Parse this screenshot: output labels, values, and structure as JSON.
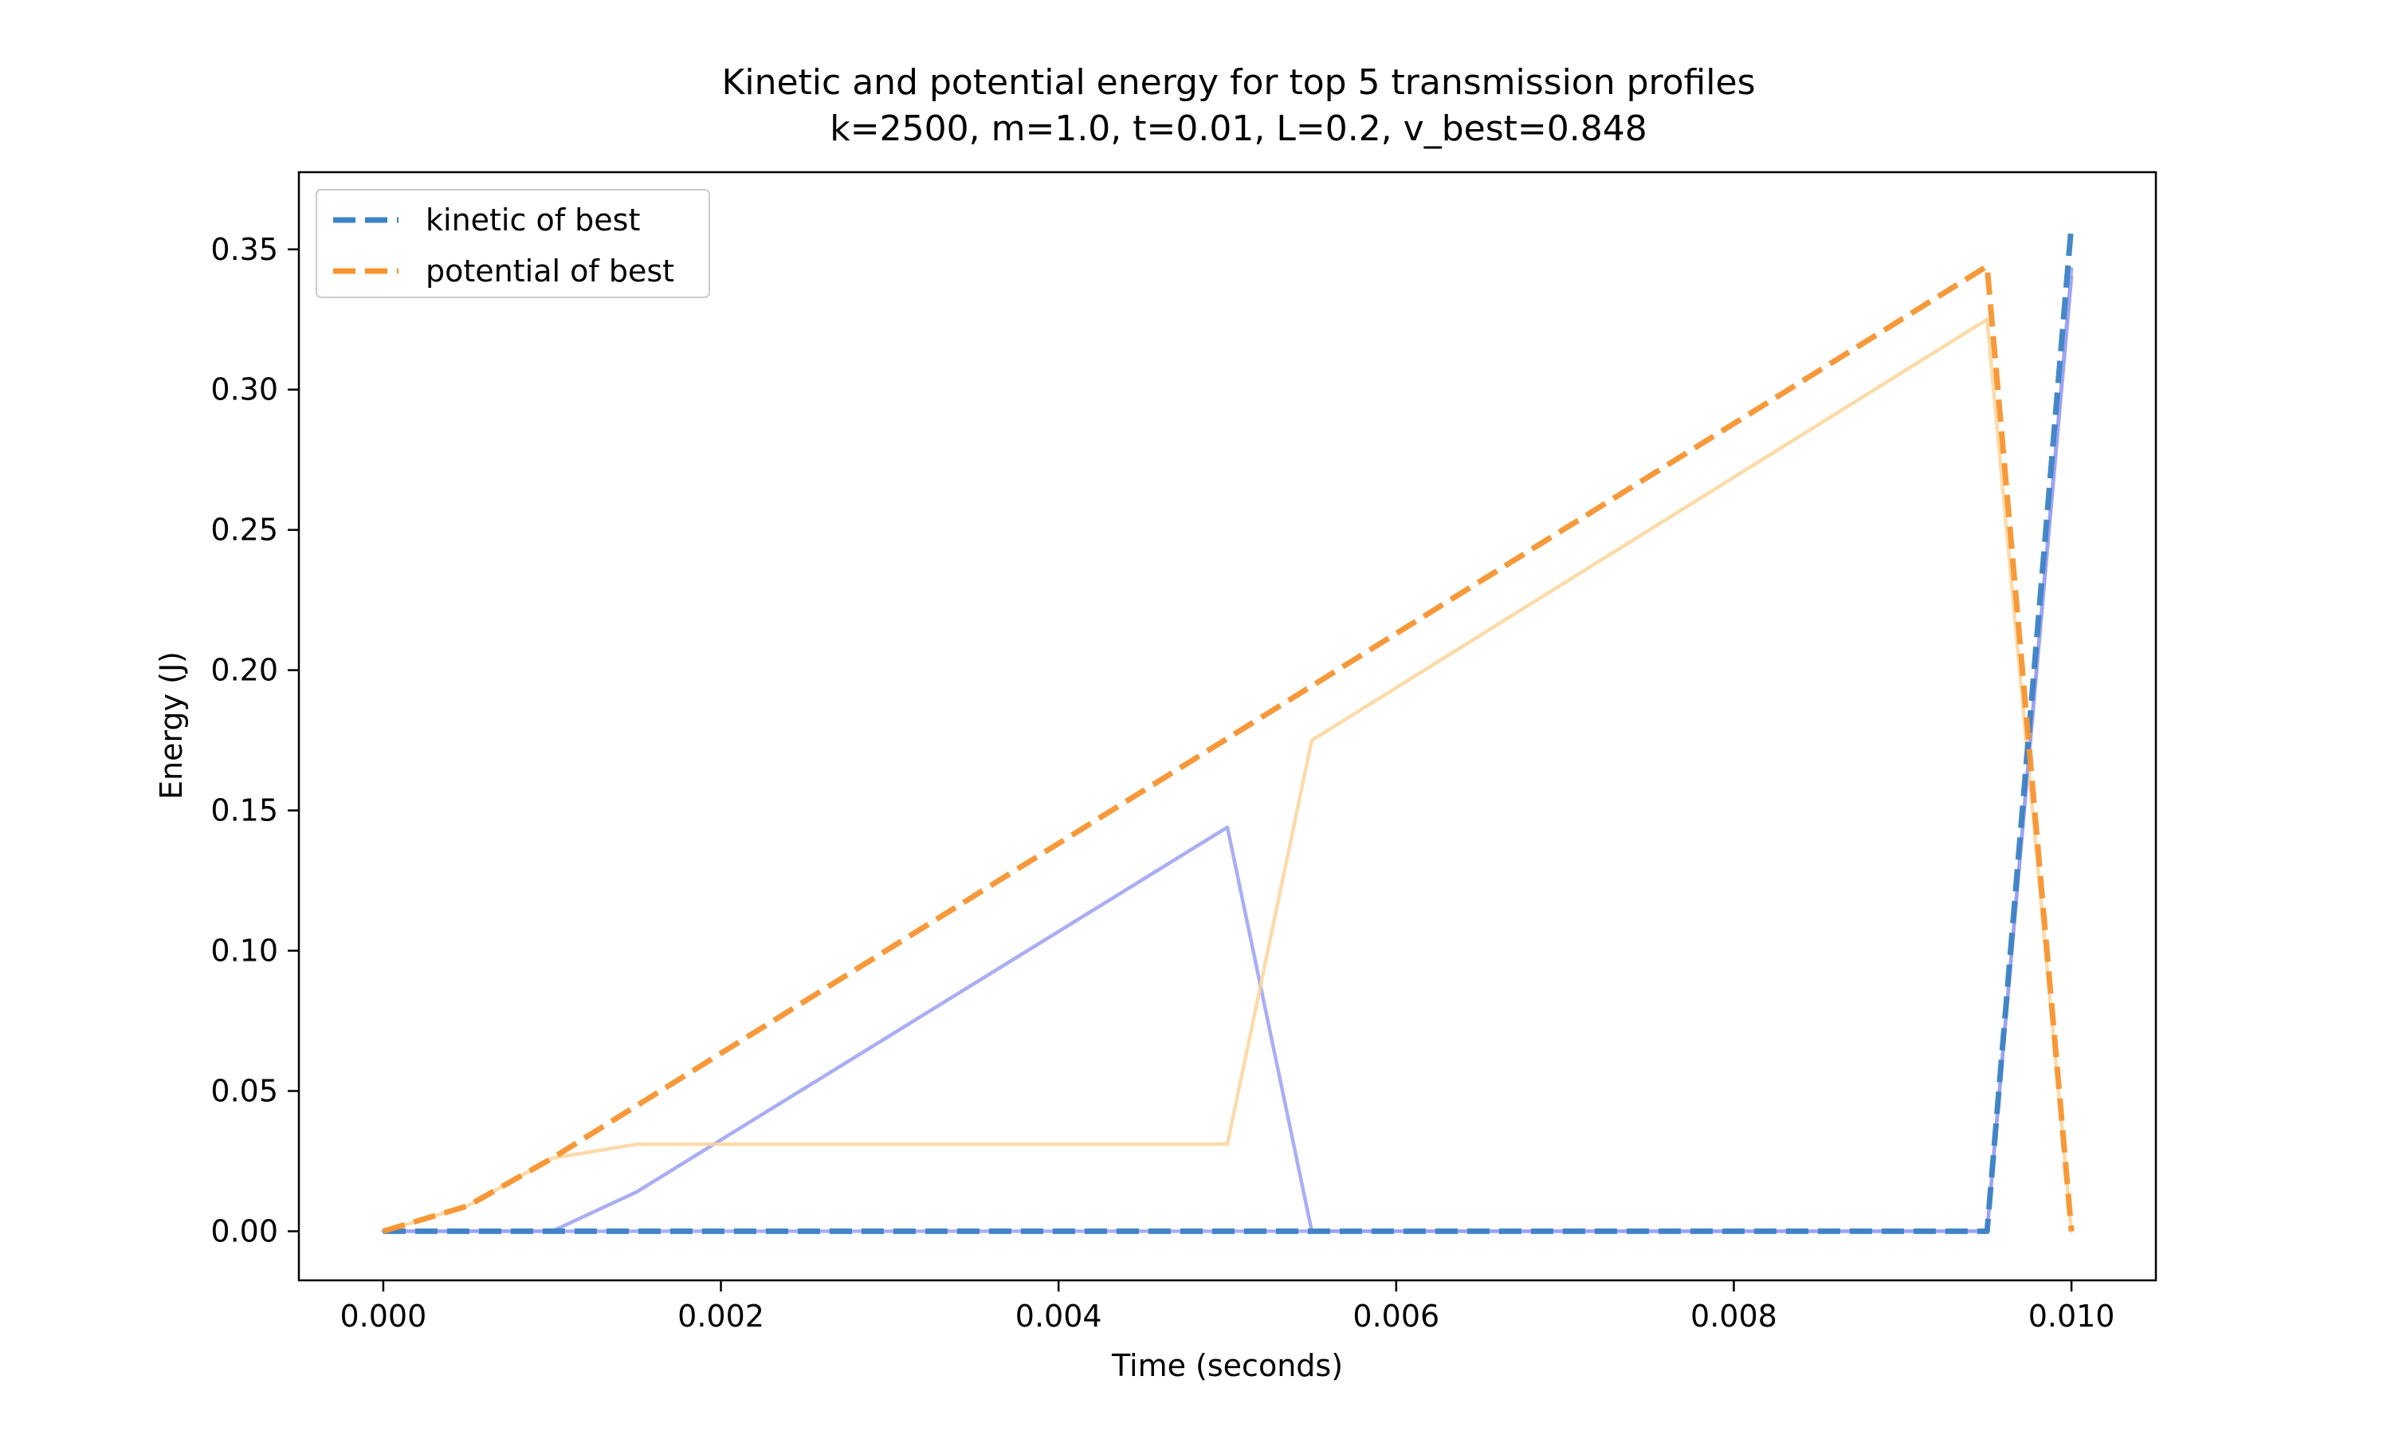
{
  "chart_data": {
    "type": "line",
    "title": "Kinetic and potential energy for top 5 transmission profiles",
    "subtitle": "k=2500, m=1.0, t=0.01, L=0.2, v_best=0.848",
    "xlabel": "Time (seconds)",
    "ylabel": "Energy (J)",
    "xlim": [
      -0.0005,
      0.0105
    ],
    "ylim": [
      -0.0175,
      0.3775
    ],
    "xticks": [
      0.0,
      0.002,
      0.004,
      0.006,
      0.008,
      0.01
    ],
    "xtick_labels": [
      "0.000",
      "0.002",
      "0.004",
      "0.006",
      "0.008",
      "0.010"
    ],
    "yticks": [
      0.0,
      0.05,
      0.1,
      0.15,
      0.2,
      0.25,
      0.3,
      0.35
    ],
    "ytick_labels": [
      "0.00",
      "0.05",
      "0.10",
      "0.15",
      "0.20",
      "0.25",
      "0.30",
      "0.35"
    ],
    "grid": false,
    "legend_position": "top-left",
    "series": [
      {
        "kind": "background",
        "color": "#9aa0f2",
        "dashed": false,
        "points": [
          [
            0.0,
            0.0
          ],
          [
            0.001,
            0.0
          ],
          [
            0.0015,
            0.014
          ],
          [
            0.005,
            0.144
          ],
          [
            0.0055,
            0.0
          ],
          [
            0.0095,
            0.0
          ],
          [
            0.01,
            0.34
          ]
        ]
      },
      {
        "kind": "background",
        "color": "#fcd59a",
        "dashed": false,
        "points": [
          [
            0.0,
            0.0
          ],
          [
            0.0005,
            0.009
          ],
          [
            0.001,
            0.026
          ],
          [
            0.0015,
            0.031
          ],
          [
            0.005,
            0.031
          ],
          [
            0.0055,
            0.175
          ],
          [
            0.0095,
            0.325
          ],
          [
            0.01,
            0.0
          ]
        ]
      },
      {
        "kind": "background",
        "color": "#9aa0f2",
        "dashed": false,
        "points": [
          [
            0.0,
            0.0
          ],
          [
            0.0095,
            0.0
          ],
          [
            0.01,
            0.343
          ]
        ]
      },
      {
        "kind": "legend",
        "name": "kinetic of best",
        "color": "#3b82c4",
        "dashed": true,
        "points": [
          [
            0.0,
            0.0
          ],
          [
            0.0005,
            0.0
          ],
          [
            0.001,
            0.0
          ],
          [
            0.0095,
            0.0
          ],
          [
            0.01,
            0.359
          ]
        ]
      },
      {
        "kind": "legend",
        "name": "potential of best",
        "color": "#f7932f",
        "dashed": true,
        "points": [
          [
            0.0,
            0.0
          ],
          [
            0.0005,
            0.009
          ],
          [
            0.001,
            0.026
          ],
          [
            0.0095,
            0.344
          ],
          [
            0.01,
            0.0
          ]
        ]
      }
    ]
  }
}
